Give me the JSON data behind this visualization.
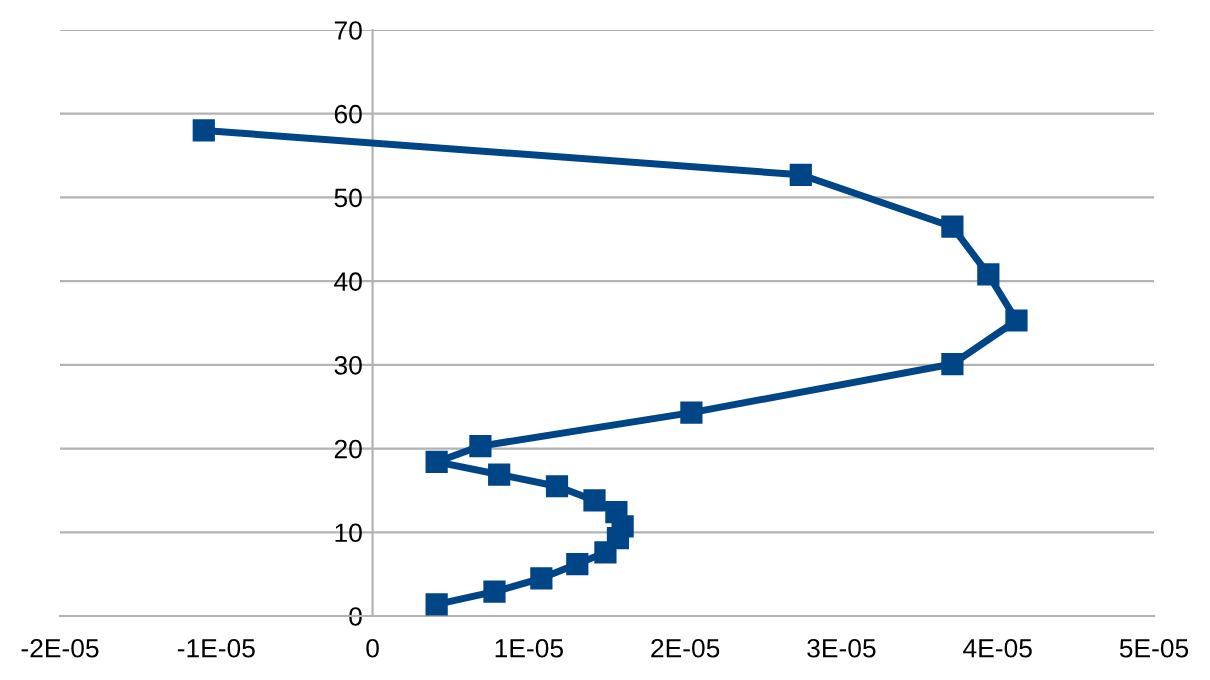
{
  "chart_data": {
    "type": "line",
    "marker": "square",
    "line_style": "solid",
    "grid": "y",
    "legend": false,
    "series": [
      {
        "color": "#004586",
        "x": [
          4.1e-06,
          7.8e-06,
          1.08e-05,
          1.31e-05,
          1.49e-05,
          1.57e-05,
          1.6e-05,
          1.56e-05,
          1.42e-05,
          1.18e-05,
          8.1e-06,
          4.1e-06,
          6.9e-06,
          2.04e-05,
          3.71e-05,
          4.12e-05,
          3.94e-05,
          3.71e-05,
          2.74e-05,
          -1.08e-05
        ],
        "values": [
          1.4,
          2.9,
          4.5,
          6.2,
          7.6,
          9.3,
          10.7,
          12.4,
          13.8,
          15.5,
          16.9,
          18.4,
          20.3,
          24.3,
          30.1,
          35.3,
          40.8,
          46.5,
          52.7,
          58.0
        ]
      }
    ],
    "xlim": [
      -2e-05,
      5e-05
    ],
    "xticks": [
      {
        "value": -2e-05,
        "label": "-2E-05"
      },
      {
        "value": -1e-05,
        "label": "-1E-05"
      },
      0,
      {
        "value": 1e-05,
        "label": "1E-05"
      },
      {
        "value": 2e-05,
        "label": "2E-05"
      },
      {
        "value": 3e-05,
        "label": "3E-05"
      },
      {
        "value": 4e-05,
        "label": "4E-05"
      },
      {
        "value": 5e-05,
        "label": "5E-05"
      }
    ],
    "ylim": [
      0,
      70
    ],
    "yticks": [
      0,
      10,
      20,
      30,
      40,
      50,
      60,
      70
    ]
  }
}
